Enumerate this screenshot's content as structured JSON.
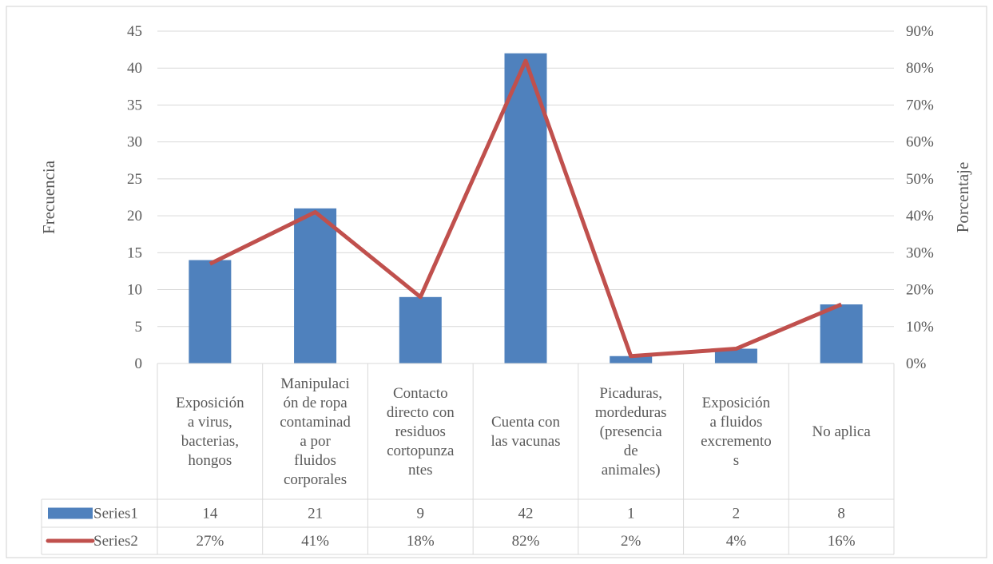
{
  "chart_data": {
    "type": "bar",
    "combo": "bar+line",
    "categories": [
      [
        "Exposición",
        "a virus,",
        "bacterias,",
        "hongos"
      ],
      [
        "Manipulaci",
        "ón de ropa",
        "contaminad",
        "a por",
        "fluidos",
        "corporales"
      ],
      [
        "Contacto",
        "directo con",
        "residuos",
        "cortopunza",
        "ntes"
      ],
      [
        "Cuenta con",
        "las vacunas"
      ],
      [
        "Picaduras,",
        "mordeduras",
        "(presencia",
        "de",
        "animales)"
      ],
      [
        "Exposición",
        "a fluidos",
        "excremento",
        "s"
      ],
      [
        "No aplica"
      ]
    ],
    "series": [
      {
        "name": "Series1",
        "kind": "bar",
        "axis": "left",
        "values": [
          14,
          21,
          9,
          42,
          1,
          2,
          8
        ],
        "labels": [
          "14",
          "21",
          "9",
          "42",
          "1",
          "2",
          "8"
        ],
        "color": "#4f81bd"
      },
      {
        "name": "Series2",
        "kind": "line",
        "axis": "right",
        "values": [
          0.27,
          0.41,
          0.18,
          0.82,
          0.02,
          0.04,
          0.16
        ],
        "labels": [
          "27%",
          "41%",
          "18%",
          "82%",
          "2%",
          "4%",
          "16%"
        ],
        "color": "#c0504d"
      }
    ],
    "ylabel": "Frecuencia",
    "y2label": "Porcentaje",
    "ylim": [
      0,
      45
    ],
    "yticks": [
      0,
      5,
      10,
      15,
      20,
      25,
      30,
      35,
      40,
      45
    ],
    "y2lim": [
      0,
      0.9
    ],
    "y2ticks": [
      "0%",
      "10%",
      "20%",
      "30%",
      "40%",
      "50%",
      "60%",
      "70%",
      "80%",
      "90%"
    ],
    "grid": true,
    "legend": "data-table"
  }
}
